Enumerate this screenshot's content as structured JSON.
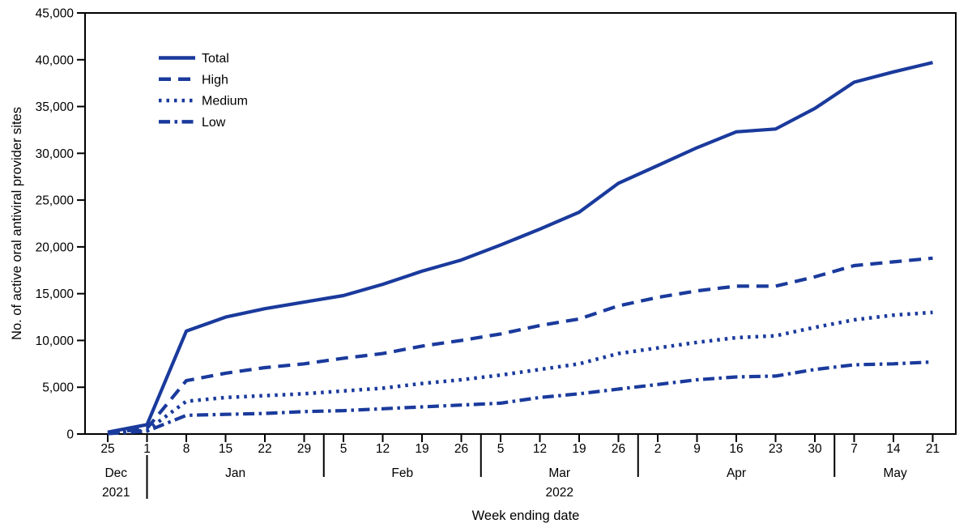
{
  "chart_data": {
    "type": "line",
    "title": "",
    "xlabel": "Week ending date",
    "ylabel": "No. of active oral antiviral provider sites",
    "ylim": [
      0,
      45000
    ],
    "ytick_values": [
      0,
      5000,
      10000,
      15000,
      20000,
      25000,
      30000,
      35000,
      40000,
      45000
    ],
    "ytick_labels": [
      "0",
      "5,000",
      "10,000",
      "15,000",
      "20,000",
      "25,000",
      "30,000",
      "35,000",
      "40,000",
      "45,000"
    ],
    "grid": "off",
    "legend_position": "top-left-inside",
    "line_color": "#1a3a9c",
    "axis_color": "#000000",
    "categories": [
      "25",
      "1",
      "8",
      "15",
      "22",
      "29",
      "5",
      "12",
      "19",
      "26",
      "5",
      "12",
      "19",
      "26",
      "2",
      "9",
      "16",
      "23",
      "30",
      "7",
      "14",
      "21"
    ],
    "month_groups": [
      {
        "label": "Dec",
        "year": "2021",
        "ticks": 1
      },
      {
        "label": "Jan",
        "ticks": 5
      },
      {
        "label": "Feb",
        "ticks": 4
      },
      {
        "label": "Mar",
        "year": "2022",
        "ticks": 4
      },
      {
        "label": "Apr",
        "ticks": 5
      },
      {
        "label": "May",
        "ticks": 3
      }
    ],
    "series": [
      {
        "name": "Total",
        "style": "solid",
        "values": [
          200,
          1000,
          11000,
          12500,
          13400,
          14100,
          14800,
          16000,
          17400,
          18600,
          20200,
          21900,
          23700,
          26800,
          28700,
          30600,
          32300,
          32600,
          34800,
          37600,
          38700,
          39700
        ]
      },
      {
        "name": "High",
        "style": "dashed",
        "values": [
          100,
          600,
          5700,
          6500,
          7100,
          7500,
          8100,
          8600,
          9400,
          10000,
          10700,
          11600,
          12300,
          13700,
          14600,
          15300,
          15800,
          15800,
          16800,
          18000,
          18400,
          18800
        ]
      },
      {
        "name": "Medium",
        "style": "dotted",
        "values": [
          60,
          400,
          3500,
          3900,
          4100,
          4300,
          4600,
          4900,
          5400,
          5800,
          6300,
          6900,
          7500,
          8600,
          9200,
          9800,
          10300,
          10500,
          11400,
          12200,
          12700,
          13000
        ]
      },
      {
        "name": "Low",
        "style": "dash-dot",
        "values": [
          40,
          300,
          2000,
          2100,
          2200,
          2400,
          2500,
          2700,
          2900,
          3100,
          3300,
          3900,
          4300,
          4800,
          5300,
          5800,
          6100,
          6200,
          6900,
          7400,
          7500,
          7700
        ]
      }
    ]
  }
}
